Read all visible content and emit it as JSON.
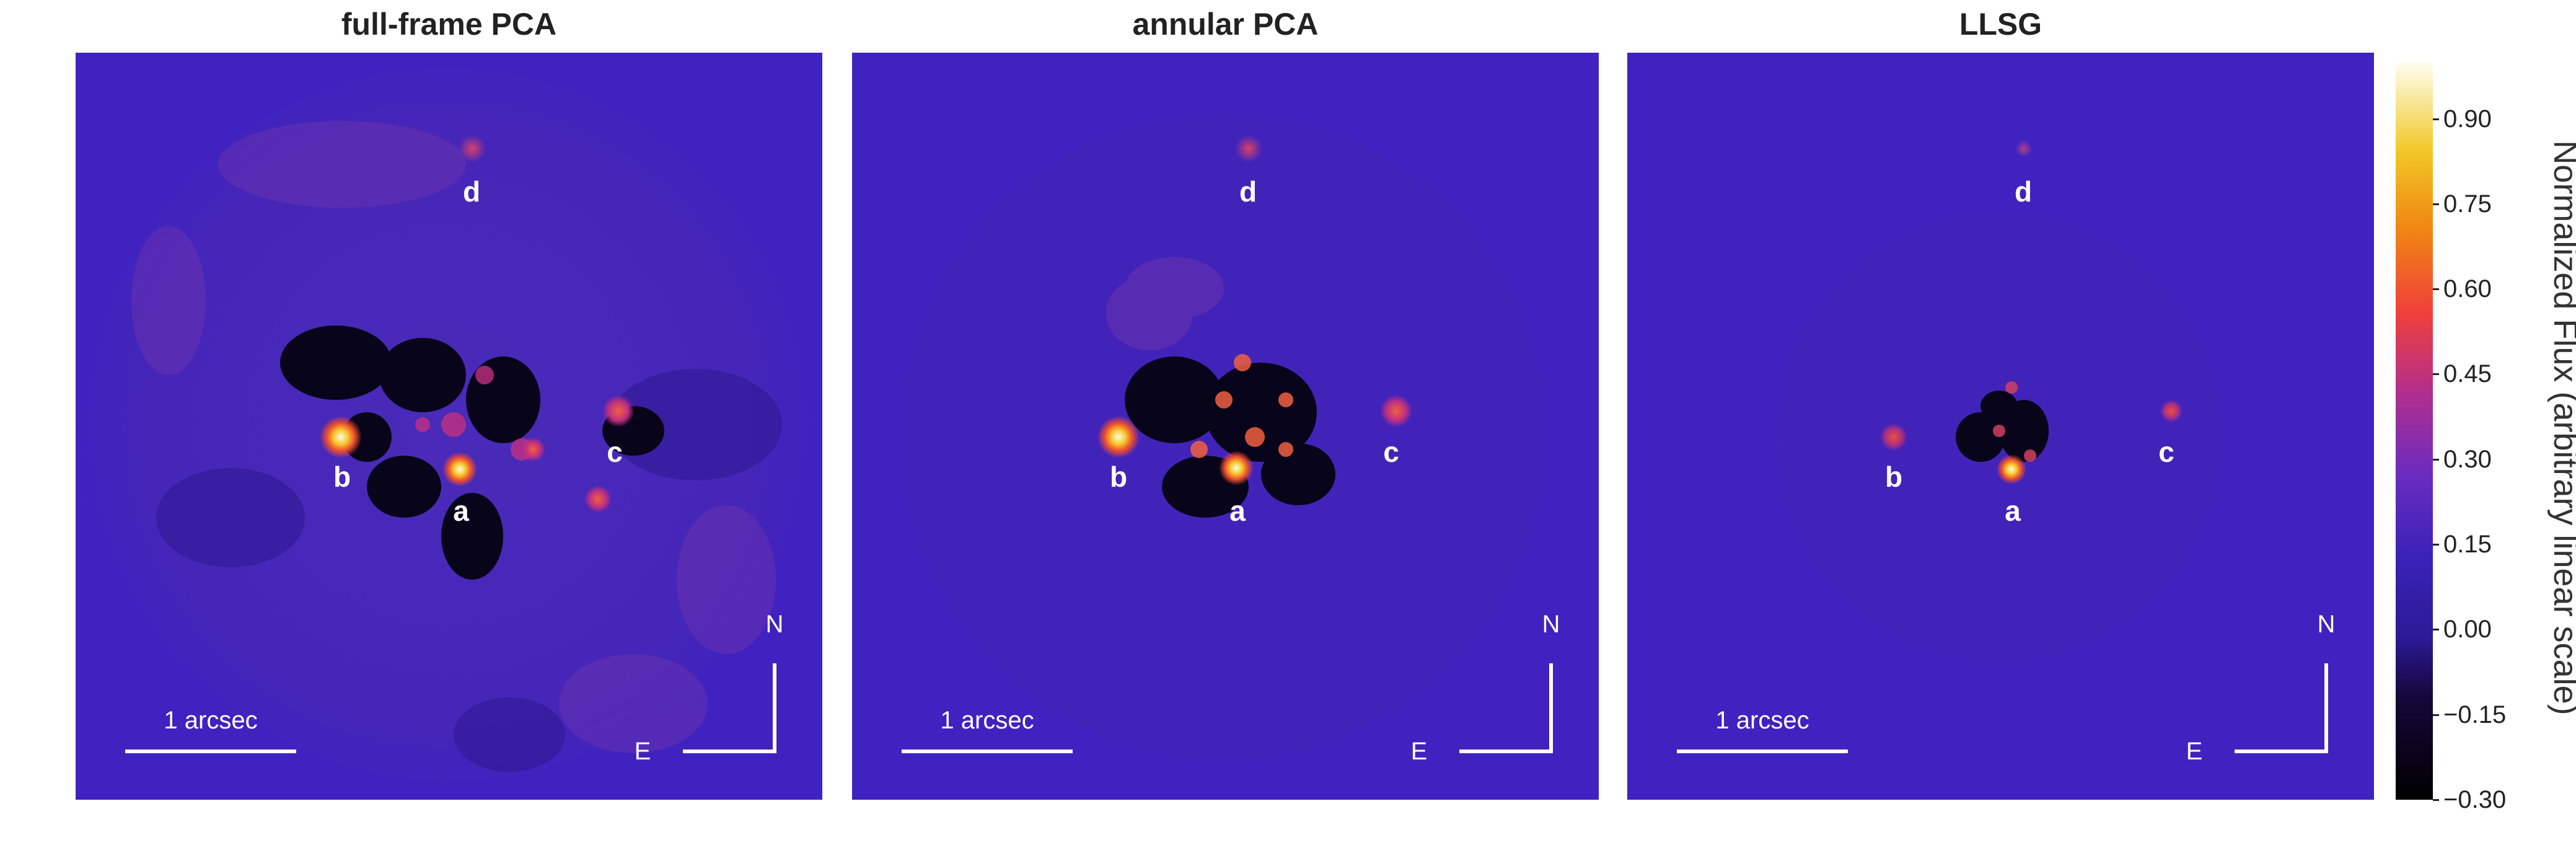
{
  "panels": [
    {
      "title": "full-frame PCA",
      "labels": {
        "a": "a",
        "b": "b",
        "c": "c",
        "d": "d"
      },
      "scale": "1 arcsec",
      "compass": {
        "n": "N",
        "e": "E"
      }
    },
    {
      "title": "annular PCA",
      "labels": {
        "a": "a",
        "b": "b",
        "c": "c",
        "d": "d"
      },
      "scale": "1 arcsec",
      "compass": {
        "n": "N",
        "e": "E"
      }
    },
    {
      "title": "LLSG",
      "labels": {
        "a": "a",
        "b": "b",
        "c": "c",
        "d": "d"
      },
      "scale": "1 arcsec",
      "compass": {
        "n": "N",
        "e": "E"
      }
    }
  ],
  "colorbar": {
    "label": "Normalized Flux (arbitrary linear scale)",
    "ticks": [
      "0.90",
      "0.75",
      "0.60",
      "0.45",
      "0.30",
      "0.15",
      "0.00",
      "−0.15",
      "−0.30"
    ],
    "tick_values": [
      0.9,
      0.75,
      0.6,
      0.45,
      0.3,
      0.15,
      0.0,
      -0.15,
      -0.3
    ],
    "vmin": -0.3,
    "vmax": 1.0
  },
  "colors": {
    "background_map": "#3f22bf",
    "text_on_image": "#ffffff",
    "title_text": "#222222"
  }
}
